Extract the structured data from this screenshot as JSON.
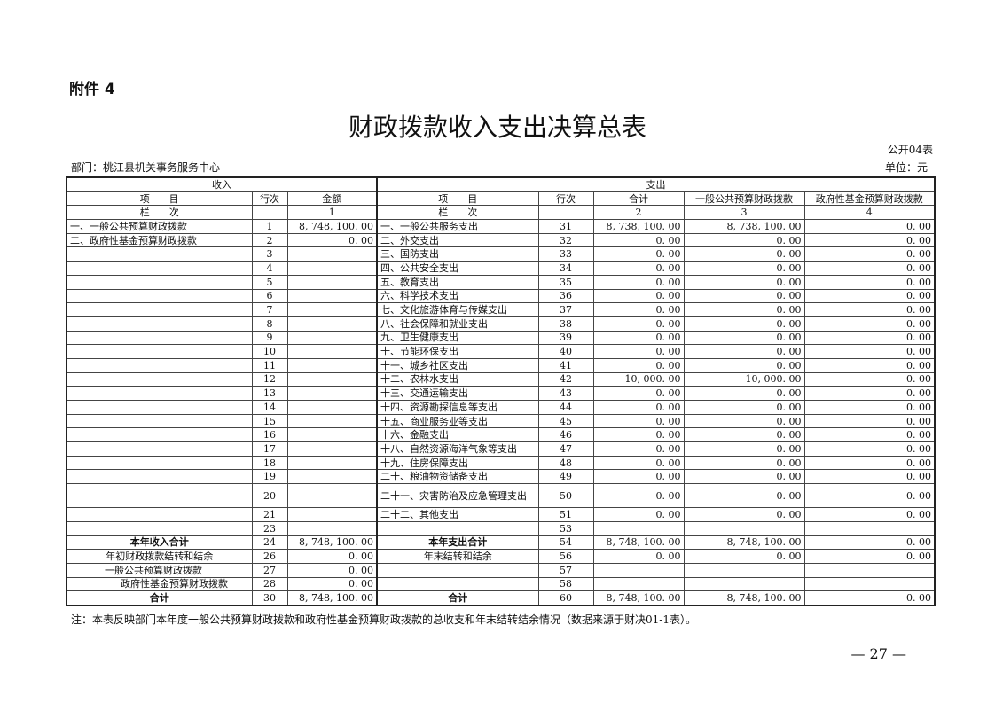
{
  "attachment": "附件 4",
  "title": "财政拨款收入支出决算总表",
  "table_code": "公开04表",
  "department": "部门：桃江县机关事务服务中心",
  "unit": "单位：元",
  "headers": {
    "income": "收入",
    "expense": "支出",
    "item": "项　　目",
    "line": "行次",
    "amount": "金额",
    "total": "合计",
    "general": "一般公共预算财政拨款",
    "fund": "政府性基金预算财政拨款",
    "col_label": "栏　　次",
    "col1": "1",
    "col2": "2",
    "col3": "3",
    "col4": "4"
  },
  "rows": [
    [
      "一、一般公共预算财政拨款",
      "1",
      "8, 748, 100. 00",
      "一、一般公共服务支出",
      "31",
      "8, 738, 100. 00",
      "8, 738, 100. 00",
      "0. 00"
    ],
    [
      "二、政府性基金预算财政拨款",
      "2",
      "0. 00",
      "二、外交支出",
      "32",
      "0. 00",
      "0. 00",
      "0. 00"
    ],
    [
      "",
      "3",
      "",
      "三、国防支出",
      "33",
      "0. 00",
      "0. 00",
      "0. 00"
    ],
    [
      "",
      "4",
      "",
      "四、公共安全支出",
      "34",
      "0. 00",
      "0. 00",
      "0. 00"
    ],
    [
      "",
      "5",
      "",
      "五、教育支出",
      "35",
      "0. 00",
      "0. 00",
      "0. 00"
    ],
    [
      "",
      "6",
      "",
      "六、科学技术支出",
      "36",
      "0. 00",
      "0. 00",
      "0. 00"
    ],
    [
      "",
      "7",
      "",
      "七、文化旅游体育与传媒支出",
      "37",
      "0. 00",
      "0. 00",
      "0. 00"
    ],
    [
      "",
      "8",
      "",
      "八、社会保障和就业支出",
      "38",
      "0. 00",
      "0. 00",
      "0. 00"
    ],
    [
      "",
      "9",
      "",
      "九、卫生健康支出",
      "39",
      "0. 00",
      "0. 00",
      "0. 00"
    ],
    [
      "",
      "10",
      "",
      "十、节能环保支出",
      "40",
      "0. 00",
      "0. 00",
      "0. 00"
    ],
    [
      "",
      "11",
      "",
      "十一、城乡社区支出",
      "41",
      "0. 00",
      "0. 00",
      "0. 00"
    ],
    [
      "",
      "12",
      "",
      "十二、农林水支出",
      "42",
      "10, 000. 00",
      "10, 000. 00",
      "0. 00"
    ],
    [
      "",
      "13",
      "",
      "十三、交通运输支出",
      "43",
      "0. 00",
      "0. 00",
      "0. 00"
    ],
    [
      "",
      "14",
      "",
      "十四、资源勘探信息等支出",
      "44",
      "0. 00",
      "0. 00",
      "0. 00"
    ],
    [
      "",
      "15",
      "",
      "十五、商业服务业等支出",
      "45",
      "0. 00",
      "0. 00",
      "0. 00"
    ],
    [
      "",
      "16",
      "",
      "十六、金融支出",
      "46",
      "0. 00",
      "0. 00",
      "0. 00"
    ],
    [
      "",
      "17",
      "",
      "十八、自然资源海洋气象等支出",
      "47",
      "0. 00",
      "0. 00",
      "0. 00"
    ],
    [
      "",
      "18",
      "",
      "十九、住房保障支出",
      "48",
      "0. 00",
      "0. 00",
      "0. 00"
    ],
    [
      "",
      "19",
      "",
      "二十、粮油物资储备支出",
      "49",
      "0. 00",
      "0. 00",
      "0. 00"
    ],
    [
      "",
      "20",
      "",
      "二十一、灾害防治及应急管理支出",
      "50",
      "0. 00",
      "0. 00",
      "0. 00"
    ],
    [
      "",
      "21",
      "",
      "二十二、其他支出",
      "51",
      "0. 00",
      "0. 00",
      "0. 00"
    ],
    [
      "",
      "23",
      "",
      "",
      "53",
      "",
      "",
      ""
    ],
    [
      "本年收入合计",
      "24",
      "8, 748, 100. 00",
      "本年支出合计",
      "54",
      "8, 748, 100. 00",
      "8, 748, 100. 00",
      "0. 00"
    ],
    [
      "年初财政拨款结转和结余",
      "26",
      "0. 00",
      "年末结转和结余",
      "56",
      "0. 00",
      "0. 00",
      "0. 00"
    ],
    [
      "一般公共预算财政拨款",
      "27",
      "0. 00",
      "",
      "57",
      "",
      "",
      ""
    ],
    [
      "政府性基金预算财政拨款",
      "28",
      "0. 00",
      "",
      "58",
      "",
      "",
      ""
    ],
    [
      "合计",
      "30",
      "8, 748, 100. 00",
      "合计",
      "60",
      "8, 748, 100. 00",
      "8, 748, 100. 00",
      "0. 00"
    ]
  ],
  "note": "注：本表反映部门本年度一般公共预算财政拨款和政府性基金预算财政拨款的总收支和年末结转结余情况（数据来源于财决01-1表）。",
  "page_number": "— 27 —"
}
